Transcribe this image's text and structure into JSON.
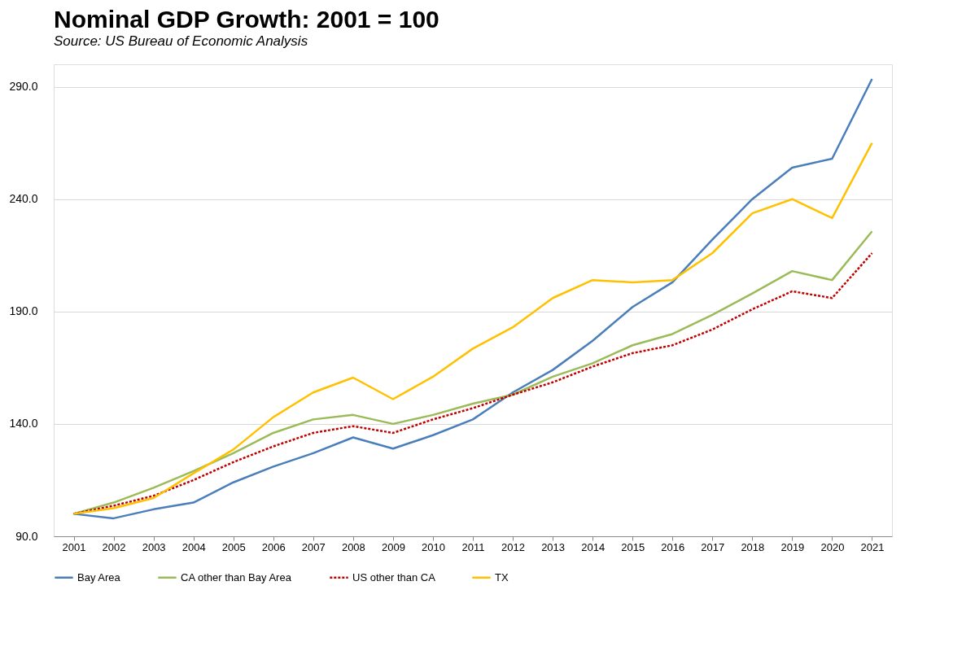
{
  "chart_data": {
    "type": "line",
    "title": "Nominal GDP Growth:  2001 = 100",
    "subtitle": "Source:  US Bureau of Economic Analysis",
    "categories": [
      "2001",
      "2002",
      "2003",
      "2004",
      "2005",
      "2006",
      "2007",
      "2008",
      "2009",
      "2010",
      "2011",
      "2012",
      "2013",
      "2014",
      "2015",
      "2016",
      "2017",
      "2018",
      "2019",
      "2020",
      "2021"
    ],
    "series": [
      {
        "name": "Bay Area",
        "color": "#4a7ebb",
        "line_style": "solid",
        "values": [
          100,
          98,
          102,
          105,
          114,
          121,
          127,
          134,
          129,
          135,
          142,
          154,
          164,
          177,
          192,
          203,
          222,
          240,
          254,
          258,
          293.5
        ]
      },
      {
        "name": "CA other than Bay Area",
        "color": "#9bbb59",
        "line_style": "solid",
        "values": [
          100,
          105,
          111.6,
          119,
          127,
          136,
          142,
          144,
          140,
          144,
          149,
          153,
          161,
          167,
          175,
          180,
          188.5,
          198,
          208,
          204,
          225.7
        ]
      },
      {
        "name": "US other than CA",
        "color": "#c00000",
        "line_style": "dotted",
        "values": [
          100,
          103.6,
          108,
          115,
          123,
          130,
          136,
          139,
          136,
          142,
          147,
          153,
          158.5,
          165.5,
          171.5,
          175,
          182,
          191,
          199,
          196,
          216
        ]
      },
      {
        "name": "TX",
        "color": "#ffc000",
        "line_style": "solid",
        "values": [
          100,
          102.5,
          107,
          118,
          128.6,
          143,
          154,
          160.6,
          151,
          161,
          173.5,
          183,
          196,
          204,
          203,
          204,
          216,
          233.7,
          240,
          231.6,
          265
        ]
      }
    ],
    "ylim": [
      90,
      300
    ],
    "yticks": [
      {
        "value": 90,
        "label": "90.0"
      },
      {
        "value": 140,
        "label": "140.0"
      },
      {
        "value": 190,
        "label": "190.0"
      },
      {
        "value": 240,
        "label": "240.0"
      },
      {
        "value": 290,
        "label": "290.0"
      }
    ],
    "grid": "y",
    "legend": "bottom",
    "marker": "none"
  }
}
